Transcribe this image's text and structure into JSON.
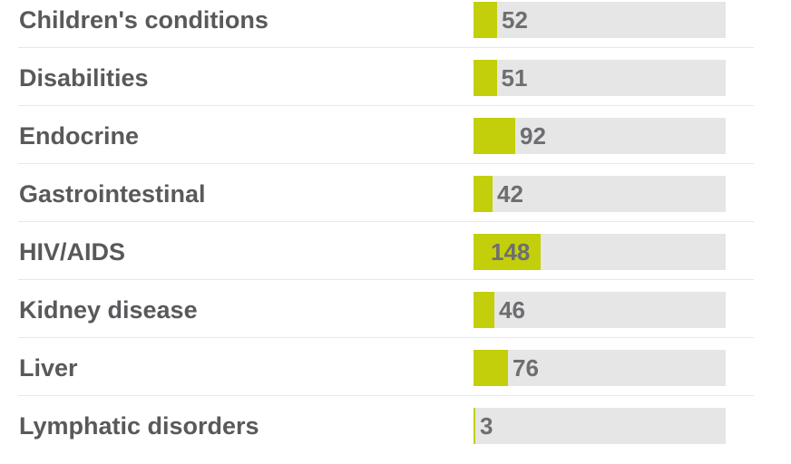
{
  "chart_data": {
    "type": "bar",
    "orientation": "horizontal",
    "categories": [
      "Children's conditions",
      "Disabilities",
      "Endocrine",
      "Gastrointestinal",
      "HIV/AIDS",
      "Kidney disease",
      "Liver",
      "Lymphatic disorders"
    ],
    "values": [
      52,
      51,
      92,
      42,
      148,
      46,
      76,
      3
    ],
    "xlim": [
      0,
      556
    ],
    "grid": false,
    "legend": "none"
  },
  "colors": {
    "bar": "#c3cf0a",
    "track": "#e6e6e6",
    "label": "#58595b",
    "value": "#6d6e71",
    "divider": "#e8e8e8"
  }
}
